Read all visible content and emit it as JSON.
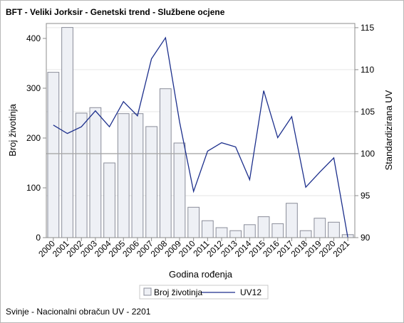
{
  "title": "BFT - Veliki Jorksir - Genetski trend - Službene ocjene",
  "footnote": "Svinje - Nacionalni obračun UV - 2201",
  "colors": {
    "bar_fill": "#eef0f5",
    "bar_stroke": "#8a8d99",
    "line": "#1c2f8c",
    "refline": "#a8a8a8",
    "gridline": "#e6e6e6",
    "axis": "#8c8c8c"
  },
  "chart_data": {
    "type": "bar",
    "xlabel": "Godina rođenja",
    "ylabel": "Broj životinja",
    "y2label": "Standardizirana UV",
    "categories": [
      "2000",
      "2001",
      "2002",
      "2003",
      "2004",
      "2005",
      "2006",
      "2007",
      "2008",
      "2009",
      "2010",
      "2011",
      "2012",
      "2013",
      "2014",
      "2015",
      "2016",
      "2017",
      "2018",
      "2019",
      "2020",
      "2021"
    ],
    "ylim": [
      0,
      430
    ],
    "yticks": [
      0,
      100,
      200,
      300,
      400
    ],
    "y2lim": [
      90,
      115.5
    ],
    "y2ticks": [
      90,
      95,
      100,
      105,
      110,
      115
    ],
    "reference_line_y2": 100,
    "grid": "horizontal",
    "legend_position": "bottom",
    "series": [
      {
        "name": "Broj životinja",
        "type": "bar",
        "axis": "left",
        "values": [
          332,
          422,
          250,
          261,
          150,
          249,
          249,
          223,
          299,
          190,
          61,
          34,
          20,
          14,
          26,
          42,
          28,
          69,
          14,
          39,
          31,
          6
        ]
      },
      {
        "name": "UV12",
        "type": "line",
        "axis": "right",
        "values": [
          103.4,
          102.4,
          103.2,
          105.1,
          103.2,
          106.2,
          104.5,
          111.3,
          113.8,
          103.8,
          95.5,
          100.3,
          101.3,
          100.8,
          96.9,
          107.5,
          101.9,
          104.4,
          96.0,
          97.8,
          99.5,
          90.0
        ]
      }
    ]
  }
}
